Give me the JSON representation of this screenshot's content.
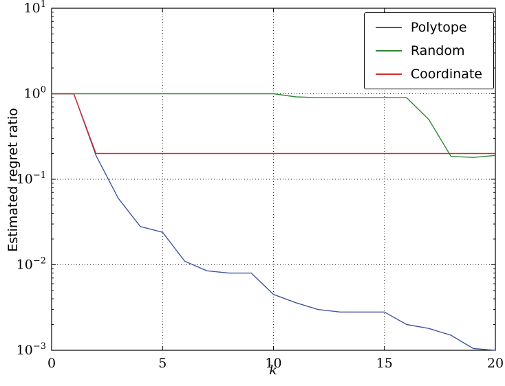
{
  "chart_data": {
    "type": "line",
    "title": "",
    "xlabel": "k",
    "ylabel": "Estimated regret ratio",
    "xlim": [
      0,
      20
    ],
    "ylim_log_exponents": [
      -3,
      1
    ],
    "x_ticks": [
      0,
      5,
      10,
      15,
      20
    ],
    "y_ticks_exp": [
      1,
      0,
      -1,
      -2,
      -3
    ],
    "grid": true,
    "grid_style": "dotted",
    "legend_position": "upper right",
    "x": [
      0,
      1,
      2,
      3,
      4,
      5,
      6,
      7,
      8,
      9,
      10,
      11,
      12,
      13,
      14,
      15,
      16,
      17,
      18,
      19,
      20
    ],
    "series": [
      {
        "name": "Polytope",
        "color": "#40569e",
        "values": [
          1.0,
          1.0,
          0.19,
          0.06,
          0.028,
          0.024,
          0.011,
          0.0085,
          0.008,
          0.008,
          0.0045,
          0.0036,
          0.003,
          0.0028,
          0.0028,
          0.0028,
          0.002,
          0.0018,
          0.0015,
          0.00105,
          0.001
        ]
      },
      {
        "name": "Random",
        "color": "#2d8633",
        "values": [
          1.0,
          1.0,
          1.0,
          1.0,
          1.0,
          1.0,
          1.0,
          1.0,
          1.0,
          1.0,
          1.0,
          0.92,
          0.9,
          0.9,
          0.9,
          0.9,
          0.9,
          0.5,
          0.185,
          0.18,
          0.19
        ]
      },
      {
        "name": "Coordinate",
        "color": "#d42a2a",
        "values": [
          1.0,
          1.0,
          0.2,
          0.2,
          0.2,
          0.2,
          0.2,
          0.2,
          0.2,
          0.2,
          0.2,
          0.2,
          0.2,
          0.2,
          0.2,
          0.2,
          0.2,
          0.2,
          0.2,
          0.2,
          0.2
        ]
      }
    ]
  }
}
